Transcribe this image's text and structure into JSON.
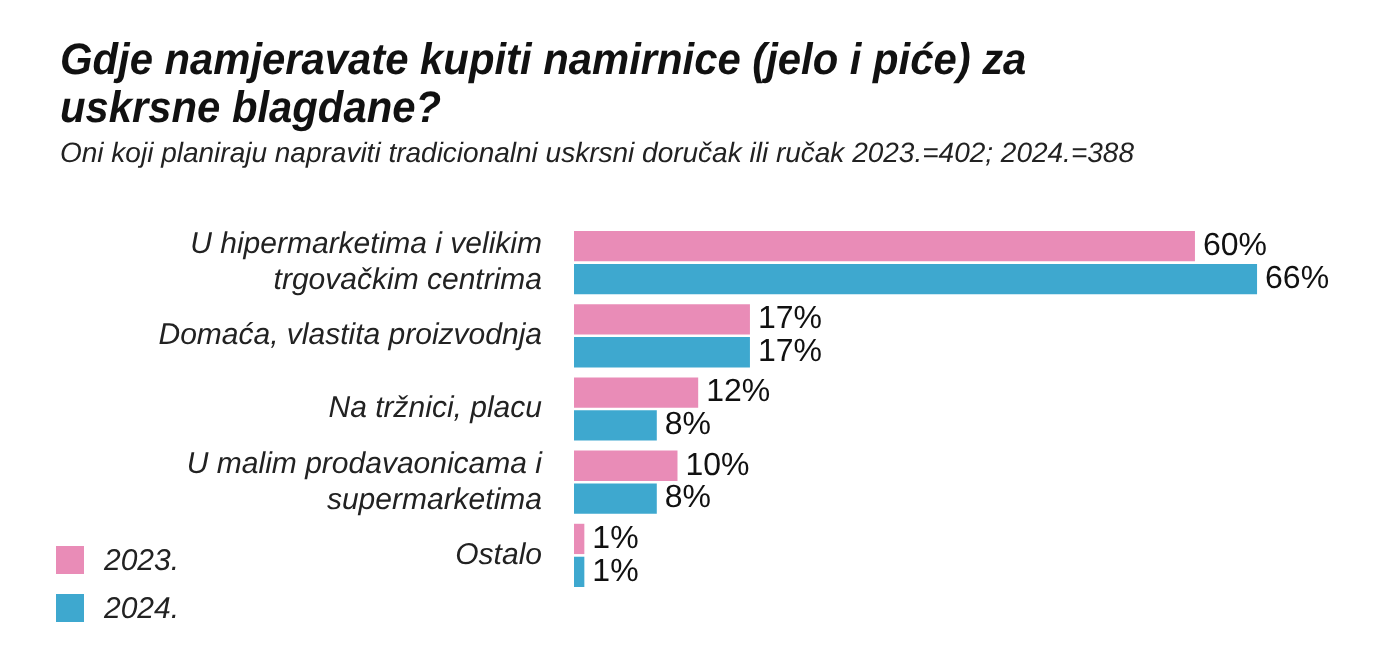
{
  "chart_data": {
    "type": "bar",
    "orientation": "horizontal",
    "title": "Gdje namjeravate kupiti namirnice (jelo i piće) za uskrsne blagdane?",
    "subtitle": "Oni koji planiraju napraviti tradicionalni uskrsni doručak ili ručak 2023.=402; 2024.=388",
    "categories": [
      "U hipermarketima i velikim trgovačkim centrima",
      "Domaća, vlastita proizvodnja",
      "Na tržnici, placu",
      "U malim prodavaonicama i supermarketima",
      "Ostalo"
    ],
    "series": [
      {
        "name": "2023.",
        "color": "#e98cb7",
        "values": [
          60,
          17,
          12,
          10,
          1
        ],
        "value_labels": [
          "60%",
          "17%",
          "12%",
          "10%",
          "1%"
        ]
      },
      {
        "name": "2024.",
        "color": "#3ea8cf",
        "values": [
          66,
          17,
          8,
          8,
          1
        ],
        "value_labels": [
          "66%",
          "17%",
          "8%",
          "8%",
          "1%"
        ]
      }
    ],
    "legend": "bottom left",
    "tick_labels": "y"
  }
}
